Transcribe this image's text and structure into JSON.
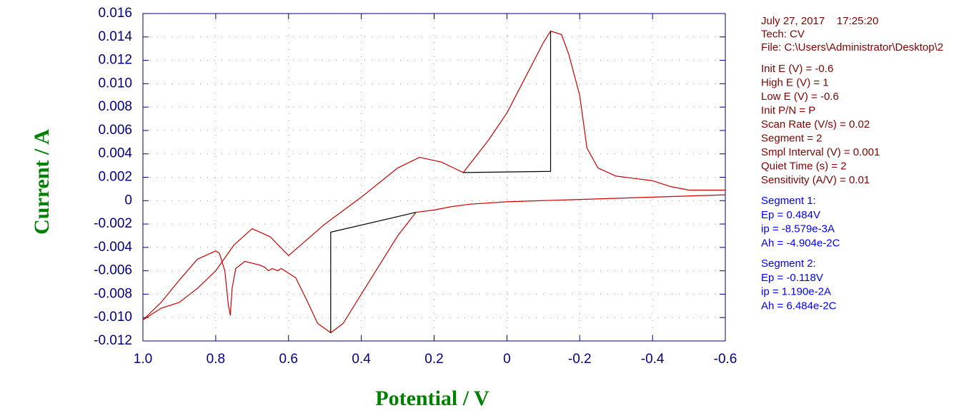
{
  "chart_data": {
    "type": "line",
    "x_label": "Potential / V",
    "y_label": "Current / A",
    "xlim": [
      1,
      -0.6
    ],
    "xticks": [
      {
        "value": 1,
        "label": "1.0"
      },
      0.8,
      0.6,
      0.4,
      0.2,
      0,
      -0.2,
      -0.4,
      -0.6
    ],
    "ylim": [
      -0.012,
      0.016
    ],
    "yticks": [
      -0.012,
      {
        "value": -0.01,
        "label": "-0.010"
      },
      -0.008,
      -0.006,
      -0.004,
      -0.002,
      0,
      0.002,
      0.004,
      0.006,
      0.008,
      {
        "value": 0.01,
        "label": "0.010"
      },
      0.012,
      0.014,
      0.016
    ],
    "grid": true,
    "series": [
      {
        "color": "#cc0000",
        "x": [
          -0.6,
          -0.4,
          -0.2,
          0,
          0.1,
          0.15,
          0.2,
          0.25,
          0.3,
          0.35,
          0.4,
          0.45,
          0.484,
          0.52,
          0.55,
          0.58,
          0.62,
          0.63,
          0.645,
          0.655,
          0.665,
          0.68,
          0.72,
          0.745,
          0.755,
          0.76,
          0.765,
          0.775,
          0.79,
          0.8,
          0.85,
          0.9,
          0.95,
          1
        ],
        "values": [
          0.0005,
          0.0003,
          0.0001,
          -0.0001,
          -0.0003,
          -0.0005,
          -0.0008,
          -0.001,
          -0.003,
          -0.0055,
          -0.008,
          -0.0105,
          -0.0113,
          -0.0105,
          -0.0085,
          -0.0066,
          -0.0058,
          -0.006,
          -0.0058,
          -0.006,
          -0.0057,
          -0.0055,
          -0.0052,
          -0.0058,
          -0.0075,
          -0.0098,
          -0.009,
          -0.006,
          -0.0045,
          -0.0043,
          -0.005,
          -0.0068,
          -0.0087,
          -0.0102
        ]
      },
      {
        "color": "#cc0000",
        "x": [
          1,
          0.95,
          0.9,
          0.85,
          0.8,
          0.75,
          0.7,
          0.65,
          0.6,
          0.5,
          0.4,
          0.3,
          0.24,
          0.18,
          0.12,
          0.05,
          0,
          -0.05,
          -0.1,
          -0.12,
          -0.15,
          -0.17,
          -0.2,
          -0.22,
          -0.25,
          -0.3,
          -0.4,
          -0.45,
          -0.5,
          -0.6
        ],
        "values": [
          -0.0102,
          -0.0092,
          -0.0087,
          -0.0075,
          -0.006,
          -0.0038,
          -0.0024,
          -0.0031,
          -0.0047,
          -0.002,
          0.0003,
          0.0028,
          0.0037,
          0.0033,
          0.0024,
          0.0052,
          0.0075,
          0.0105,
          0.0135,
          0.0145,
          0.0142,
          0.0125,
          0.009,
          0.0045,
          0.0028,
          0.0021,
          0.0017,
          0.0012,
          0.0009,
          0.0009
        ]
      },
      {
        "color": "#000000",
        "x": [
          0.25,
          0.484,
          0.484
        ],
        "values": [
          -0.001,
          -0.0027,
          -0.0113
        ]
      },
      {
        "color": "#000000",
        "x": [
          0.12,
          -0.12,
          -0.12
        ],
        "values": [
          0.0024,
          0.0025,
          0.0145
        ]
      }
    ],
    "annotations": [
      {
        "color": "#800000",
        "lines": [
          "July 27, 2017    17:25:20",
          "Tech: CV",
          "File: C:\\Users\\Administrator\\Desktop\\2"
        ]
      },
      {
        "color": "#800000",
        "lines": [
          "Init E (V) = -0.6",
          "High E (V) = 1",
          "Low E (V) = -0.6",
          "Init P/N = P",
          "Scan Rate (V/s) = 0.02",
          "Segment = 2",
          "Smpl Interval (V) = 0.001",
          "Quiet Time (s) = 2",
          "Sensitivity (A/V) = 0.01"
        ]
      },
      {
        "color": "#0000ee",
        "lines": [
          "Segment 1:",
          "Ep = 0.484V",
          "ip = -8.579e-3A",
          "Ah = -4.904e-2C"
        ]
      },
      {
        "color": "#0000ee",
        "lines": [
          "Segment 2:",
          "Ep = -0.118V",
          "ip = 1.190e-2A",
          "Ah = 6.484e-2C"
        ]
      }
    ]
  }
}
